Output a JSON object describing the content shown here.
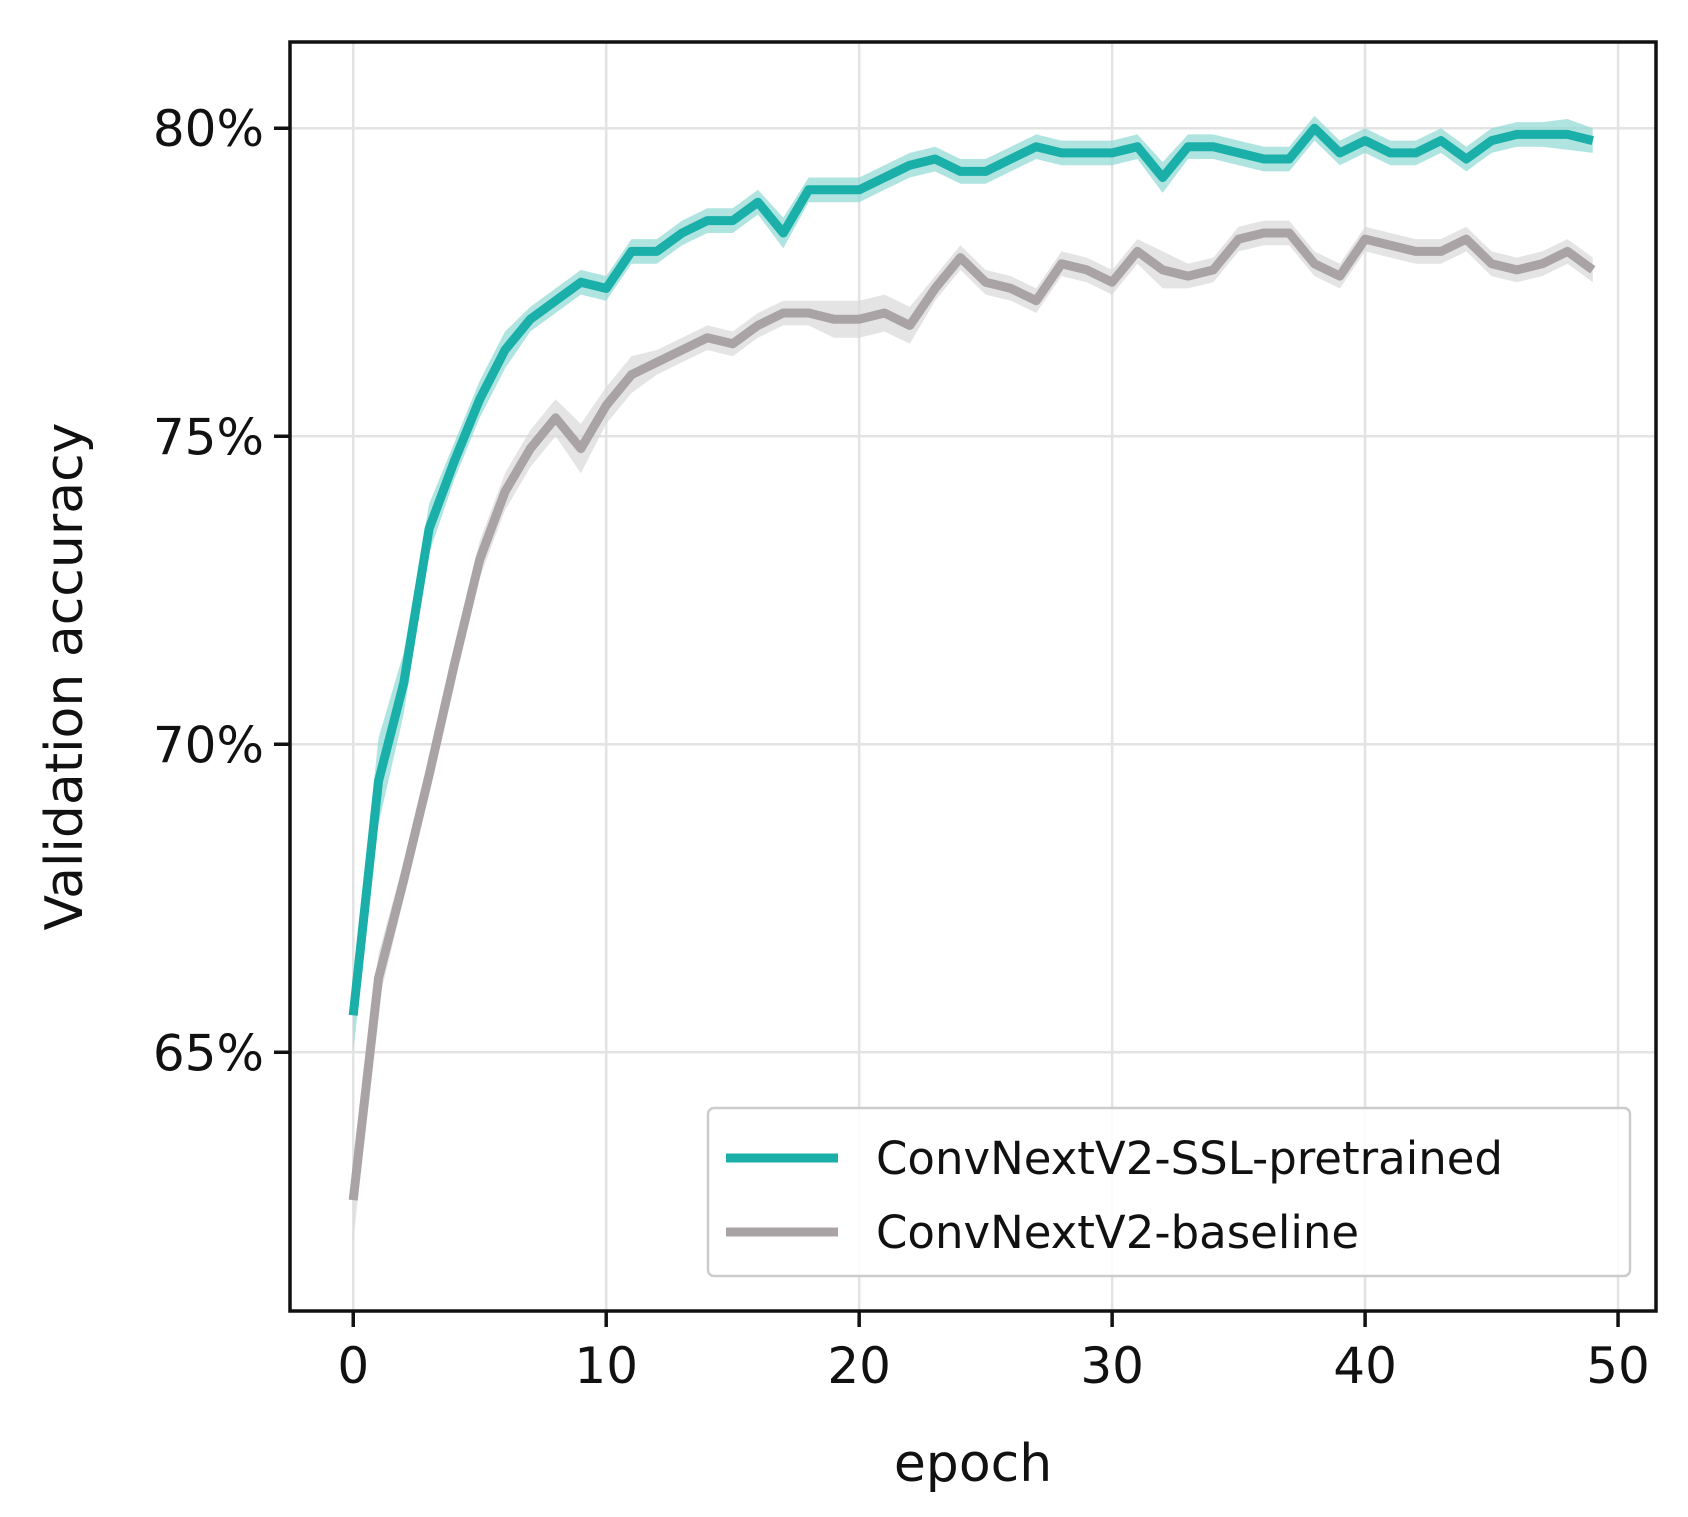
{
  "chart_data": {
    "type": "line",
    "title": "",
    "xlabel": "epoch",
    "ylabel": "Validation accuracy",
    "xlim": [
      -2.5,
      51.5
    ],
    "ylim": [
      60.8,
      81.4
    ],
    "x_ticks": [
      0,
      10,
      20,
      30,
      40,
      50
    ],
    "x_tick_labels": [
      "0",
      "10",
      "20",
      "30",
      "40",
      "50"
    ],
    "y_ticks": [
      65,
      70,
      75,
      80
    ],
    "y_tick_labels": [
      "65%",
      "70%",
      "75%",
      "80%"
    ],
    "grid": true,
    "legend_position": "bottom-right",
    "x": [
      0,
      1,
      2,
      3,
      4,
      5,
      6,
      7,
      8,
      9,
      10,
      11,
      12,
      13,
      14,
      15,
      16,
      17,
      18,
      19,
      20,
      21,
      22,
      23,
      24,
      25,
      26,
      27,
      28,
      29,
      30,
      31,
      32,
      33,
      34,
      35,
      36,
      37,
      38,
      39,
      40,
      41,
      42,
      43,
      44,
      45,
      46,
      47,
      48,
      49
    ],
    "series": [
      {
        "name": "ConvNextV2-SSL-pretrained",
        "color": "#1aafa8",
        "band_color": "#8fd8d4",
        "values": [
          65.6,
          69.4,
          71.0,
          73.5,
          74.6,
          75.6,
          76.4,
          76.9,
          77.2,
          77.5,
          77.4,
          78.0,
          78.0,
          78.3,
          78.5,
          78.5,
          78.8,
          78.3,
          79.0,
          79.0,
          79.0,
          79.2,
          79.4,
          79.5,
          79.3,
          79.3,
          79.5,
          79.7,
          79.6,
          79.6,
          79.6,
          79.7,
          79.2,
          79.7,
          79.7,
          79.6,
          79.5,
          79.5,
          80.0,
          79.6,
          79.8,
          79.6,
          79.6,
          79.8,
          79.5,
          79.8,
          79.9,
          79.9,
          79.9,
          79.8
        ],
        "band": [
          0.6,
          0.7,
          0.5,
          0.4,
          0.3,
          0.3,
          0.3,
          0.2,
          0.2,
          0.2,
          0.2,
          0.2,
          0.2,
          0.2,
          0.2,
          0.2,
          0.2,
          0.25,
          0.2,
          0.2,
          0.2,
          0.2,
          0.2,
          0.2,
          0.2,
          0.2,
          0.2,
          0.2,
          0.2,
          0.2,
          0.2,
          0.2,
          0.25,
          0.2,
          0.2,
          0.2,
          0.2,
          0.2,
          0.2,
          0.2,
          0.2,
          0.2,
          0.2,
          0.2,
          0.2,
          0.2,
          0.2,
          0.2,
          0.25,
          0.2
        ]
      },
      {
        "name": "ConvNextV2-baseline",
        "color": "#a9a3a5",
        "band_color": "#d9d9d9",
        "values": [
          62.6,
          66.2,
          67.8,
          69.5,
          71.3,
          73.0,
          74.1,
          74.8,
          75.3,
          74.8,
          75.5,
          76.0,
          76.2,
          76.4,
          76.6,
          76.5,
          76.8,
          77.0,
          77.0,
          76.9,
          76.9,
          77.0,
          76.8,
          77.4,
          77.9,
          77.5,
          77.4,
          77.2,
          77.8,
          77.7,
          77.5,
          78.0,
          77.7,
          77.6,
          77.7,
          78.2,
          78.3,
          78.3,
          77.8,
          77.6,
          78.2,
          78.1,
          78.0,
          78.0,
          78.2,
          77.8,
          77.7,
          77.8,
          78.0,
          77.7
        ],
        "band": [
          0.7,
          0.4,
          0.3,
          0.3,
          0.3,
          0.3,
          0.3,
          0.3,
          0.3,
          0.4,
          0.3,
          0.3,
          0.2,
          0.2,
          0.2,
          0.2,
          0.2,
          0.2,
          0.2,
          0.3,
          0.3,
          0.3,
          0.3,
          0.2,
          0.2,
          0.2,
          0.2,
          0.2,
          0.2,
          0.2,
          0.2,
          0.2,
          0.3,
          0.2,
          0.2,
          0.2,
          0.2,
          0.2,
          0.2,
          0.2,
          0.2,
          0.2,
          0.2,
          0.2,
          0.2,
          0.2,
          0.2,
          0.2,
          0.2,
          0.2
        ]
      }
    ]
  }
}
